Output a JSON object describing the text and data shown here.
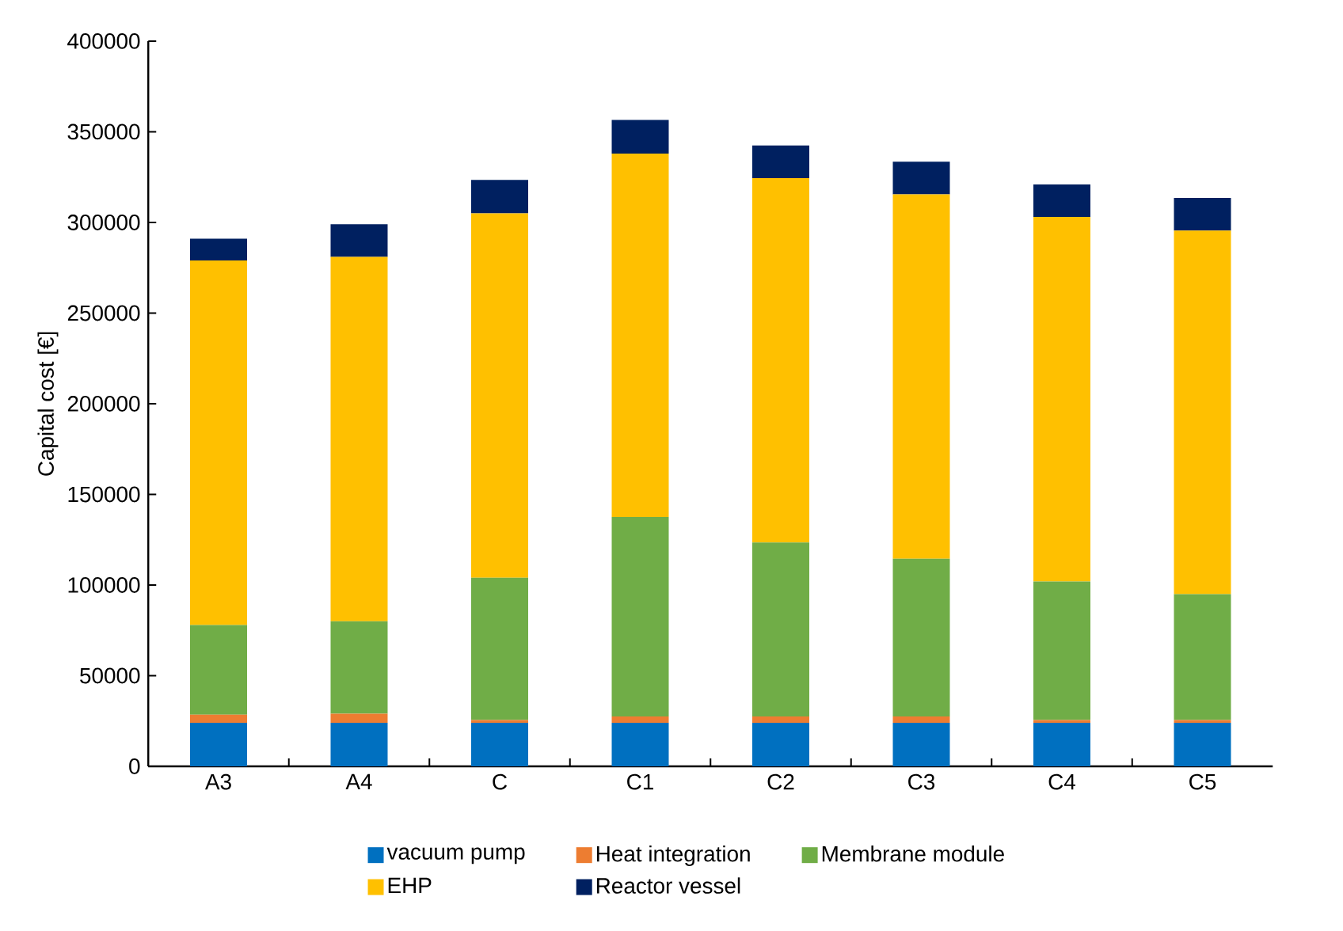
{
  "chart_data": {
    "type": "bar",
    "stacked": true,
    "ylabel": "Capital cost [€]",
    "categories": [
      "A3",
      "A4",
      "C",
      "C1",
      "C2",
      "C3",
      "C4",
      "C5"
    ],
    "series": [
      {
        "name": "vacuum pump",
        "color": "#0070c0",
        "values": [
          24000,
          24000,
          24000,
          24000,
          24000,
          24000,
          24000,
          24000
        ]
      },
      {
        "name": "Heat integration",
        "color": "#ed7d31",
        "values": [
          4500,
          5000,
          1500,
          3500,
          3500,
          3500,
          1500,
          1500
        ]
      },
      {
        "name": "Membrane module",
        "color": "#70ad47",
        "values": [
          49500,
          51000,
          78500,
          110000,
          96000,
          87000,
          76500,
          69500
        ]
      },
      {
        "name": "EHP",
        "color": "#ffc000",
        "values": [
          201000,
          201000,
          201000,
          200500,
          201000,
          201000,
          201000,
          200500
        ]
      },
      {
        "name": "Reactor vessel",
        "color": "#002060",
        "values": [
          12000,
          18000,
          18500,
          18500,
          18000,
          18000,
          18000,
          18000
        ]
      }
    ],
    "ylim": [
      0,
      400000
    ],
    "yticks": [
      0,
      50000,
      100000,
      150000,
      200000,
      250000,
      300000,
      350000,
      400000
    ],
    "legend": "bottom"
  }
}
